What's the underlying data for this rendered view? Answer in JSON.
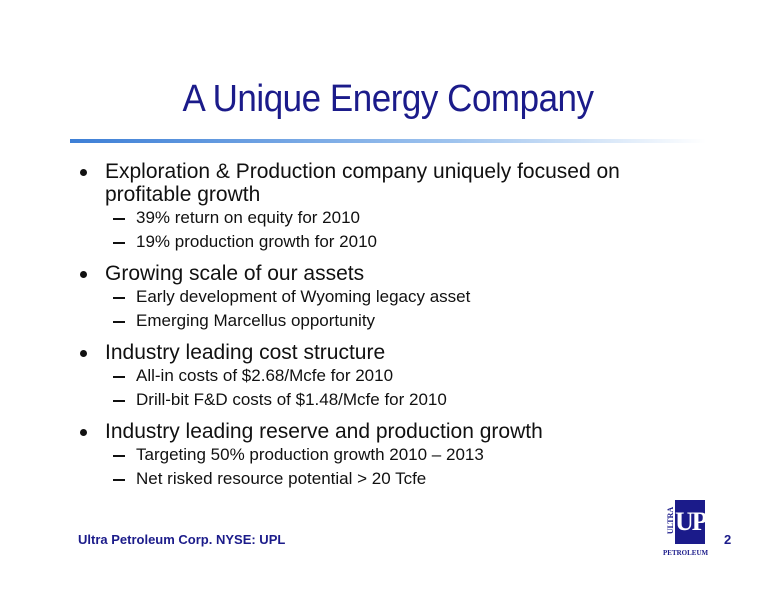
{
  "title": "A Unique Energy Company",
  "bullets": [
    {
      "text": "Exploration & Production company uniquely focused on profitable growth",
      "subs": [
        "39% return on equity for 2010",
        "19% production growth for 2010"
      ]
    },
    {
      "text": "Growing scale of our assets",
      "subs": [
        "Early development of Wyoming legacy asset",
        "Emerging Marcellus opportunity"
      ]
    },
    {
      "text": "Industry leading cost structure",
      "subs": [
        "All-in costs of $2.68/Mcfe for 2010",
        "Drill-bit F&D costs of $1.48/Mcfe for 2010"
      ]
    },
    {
      "text": "Industry leading reserve and production growth",
      "subs": [
        "Targeting 50% production growth 2010 – 2013",
        "Net risked resource potential > 20 Tcfe"
      ]
    }
  ],
  "footer": {
    "text": "Ultra Petroleum Corp. NYSE: UPL",
    "page": "2"
  },
  "logo": {
    "top": "ULTRA",
    "main": "UP",
    "bottom": "PETROLEUM"
  }
}
